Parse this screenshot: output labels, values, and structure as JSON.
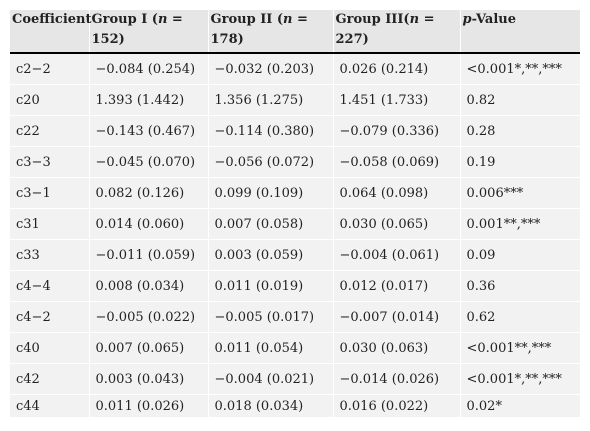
{
  "table": {
    "headers": [
      {
        "prefix": "Coefficient",
        "italic": "",
        "suffix": ""
      },
      {
        "prefix": "Group I (",
        "italic": "n",
        "suffix": " = 152)"
      },
      {
        "prefix": "Group II (",
        "italic": "n",
        "suffix": " = 178)"
      },
      {
        "prefix": "Group III(",
        "italic": "n",
        "suffix": " = 227)"
      },
      {
        "prefix": "",
        "italic": "p",
        "suffix": "-Value"
      }
    ],
    "rows": [
      [
        "c2−2",
        "−0.084 (0.254)",
        "−0.032 (0.203)",
        "0.026 (0.214)",
        "<0.001*,**,***"
      ],
      [
        "c20",
        "1.393 (1.442)",
        "1.356 (1.275)",
        "1.451 (1.733)",
        "0.82"
      ],
      [
        "c22",
        "−0.143 (0.467)",
        "−0.114 (0.380)",
        "−0.079 (0.336)",
        "0.28"
      ],
      [
        "c3−3",
        "−0.045 (0.070)",
        "−0.056 (0.072)",
        "−0.058 (0.069)",
        "0.19"
      ],
      [
        "c3−1",
        "0.082 (0.126)",
        "0.099 (0.109)",
        "0.064 (0.098)",
        "0.006***"
      ],
      [
        "c31",
        "0.014 (0.060)",
        "0.007 (0.058)",
        "0.030 (0.065)",
        "0.001**,***"
      ],
      [
        "c33",
        "−0.011 (0.059)",
        "0.003 (0.059)",
        "−0.004 (0.061)",
        "0.09"
      ],
      [
        "c4−4",
        "0.008 (0.034)",
        "0.011 (0.019)",
        "0.012 (0.017)",
        "0.36"
      ],
      [
        "c4−2",
        "−0.005 (0.022)",
        "−0.005 (0.017)",
        "−0.007 (0.014)",
        "0.62"
      ],
      [
        "c40",
        "0.007 (0.065)",
        "0.011 (0.054)",
        "0.030 (0.063)",
        "<0.001**,***"
      ],
      [
        "c42",
        "0.003 (0.043)",
        "−0.004 (0.021)",
        "−0.014 (0.026)",
        "<0.001*,**,***"
      ],
      [
        "c44",
        "0.011 (0.026)",
        "0.018 (0.034)",
        "0.016 (0.022)",
        "0.02*"
      ]
    ]
  }
}
